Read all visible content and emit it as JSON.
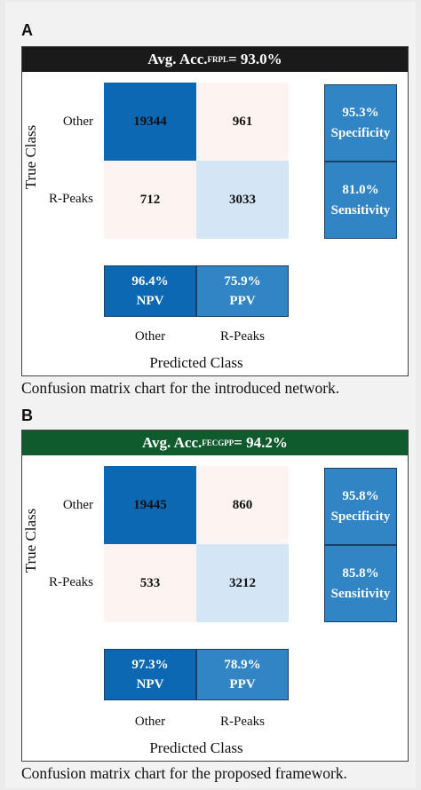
{
  "colors": {
    "header_a": "#1a1a1a",
    "header_b": "#0f5b2d",
    "dark_blue": "#0d68b3",
    "mid_blue": "#3185c4",
    "light_blue": "#d4e5f5",
    "pale_pink": "#fdf4f2"
  },
  "panels": [
    {
      "letter": "A",
      "header_prefix": "Avg. Acc.",
      "header_sub": "FRPL",
      "header_suffix": " = 93.0%",
      "caption": "Confusion matrix chart for the introduced network."
    },
    {
      "letter": "B",
      "header_prefix": "Avg. Acc.",
      "header_sub": "FECGPP",
      "header_suffix": " = 94.2%",
      "caption": "Confusion matrix chart for the proposed framework."
    }
  ],
  "chart_data": [
    {
      "type": "heatmap",
      "title": "Avg. Acc.FRPL = 93.0%",
      "xlabel": "Predicted Class",
      "ylabel": "True Class",
      "row_labels": [
        "Other",
        "R-Peaks"
      ],
      "col_labels": [
        "Other",
        "R-Peaks"
      ],
      "matrix": [
        [
          19344,
          961
        ],
        [
          712,
          3033
        ]
      ],
      "row_summary": [
        {
          "value": "95.3%",
          "name": "Specificity"
        },
        {
          "value": "81.0%",
          "name": "Sensitivity"
        }
      ],
      "col_summary": [
        {
          "value": "96.4%",
          "name": "NPV"
        },
        {
          "value": "75.9%",
          "name": "PPV"
        }
      ]
    },
    {
      "type": "heatmap",
      "title": "Avg. Acc.FECGPP = 94.2%",
      "xlabel": "Predicted Class",
      "ylabel": "True Class",
      "row_labels": [
        "Other",
        "R-Peaks"
      ],
      "col_labels": [
        "Other",
        "R-Peaks"
      ],
      "matrix": [
        [
          19445,
          860
        ],
        [
          533,
          3212
        ]
      ],
      "row_summary": [
        {
          "value": "95.8%",
          "name": "Specificity"
        },
        {
          "value": "85.8%",
          "name": "Sensitivity"
        }
      ],
      "col_summary": [
        {
          "value": "97.3%",
          "name": "NPV"
        },
        {
          "value": "78.9%",
          "name": "PPV"
        }
      ]
    }
  ]
}
